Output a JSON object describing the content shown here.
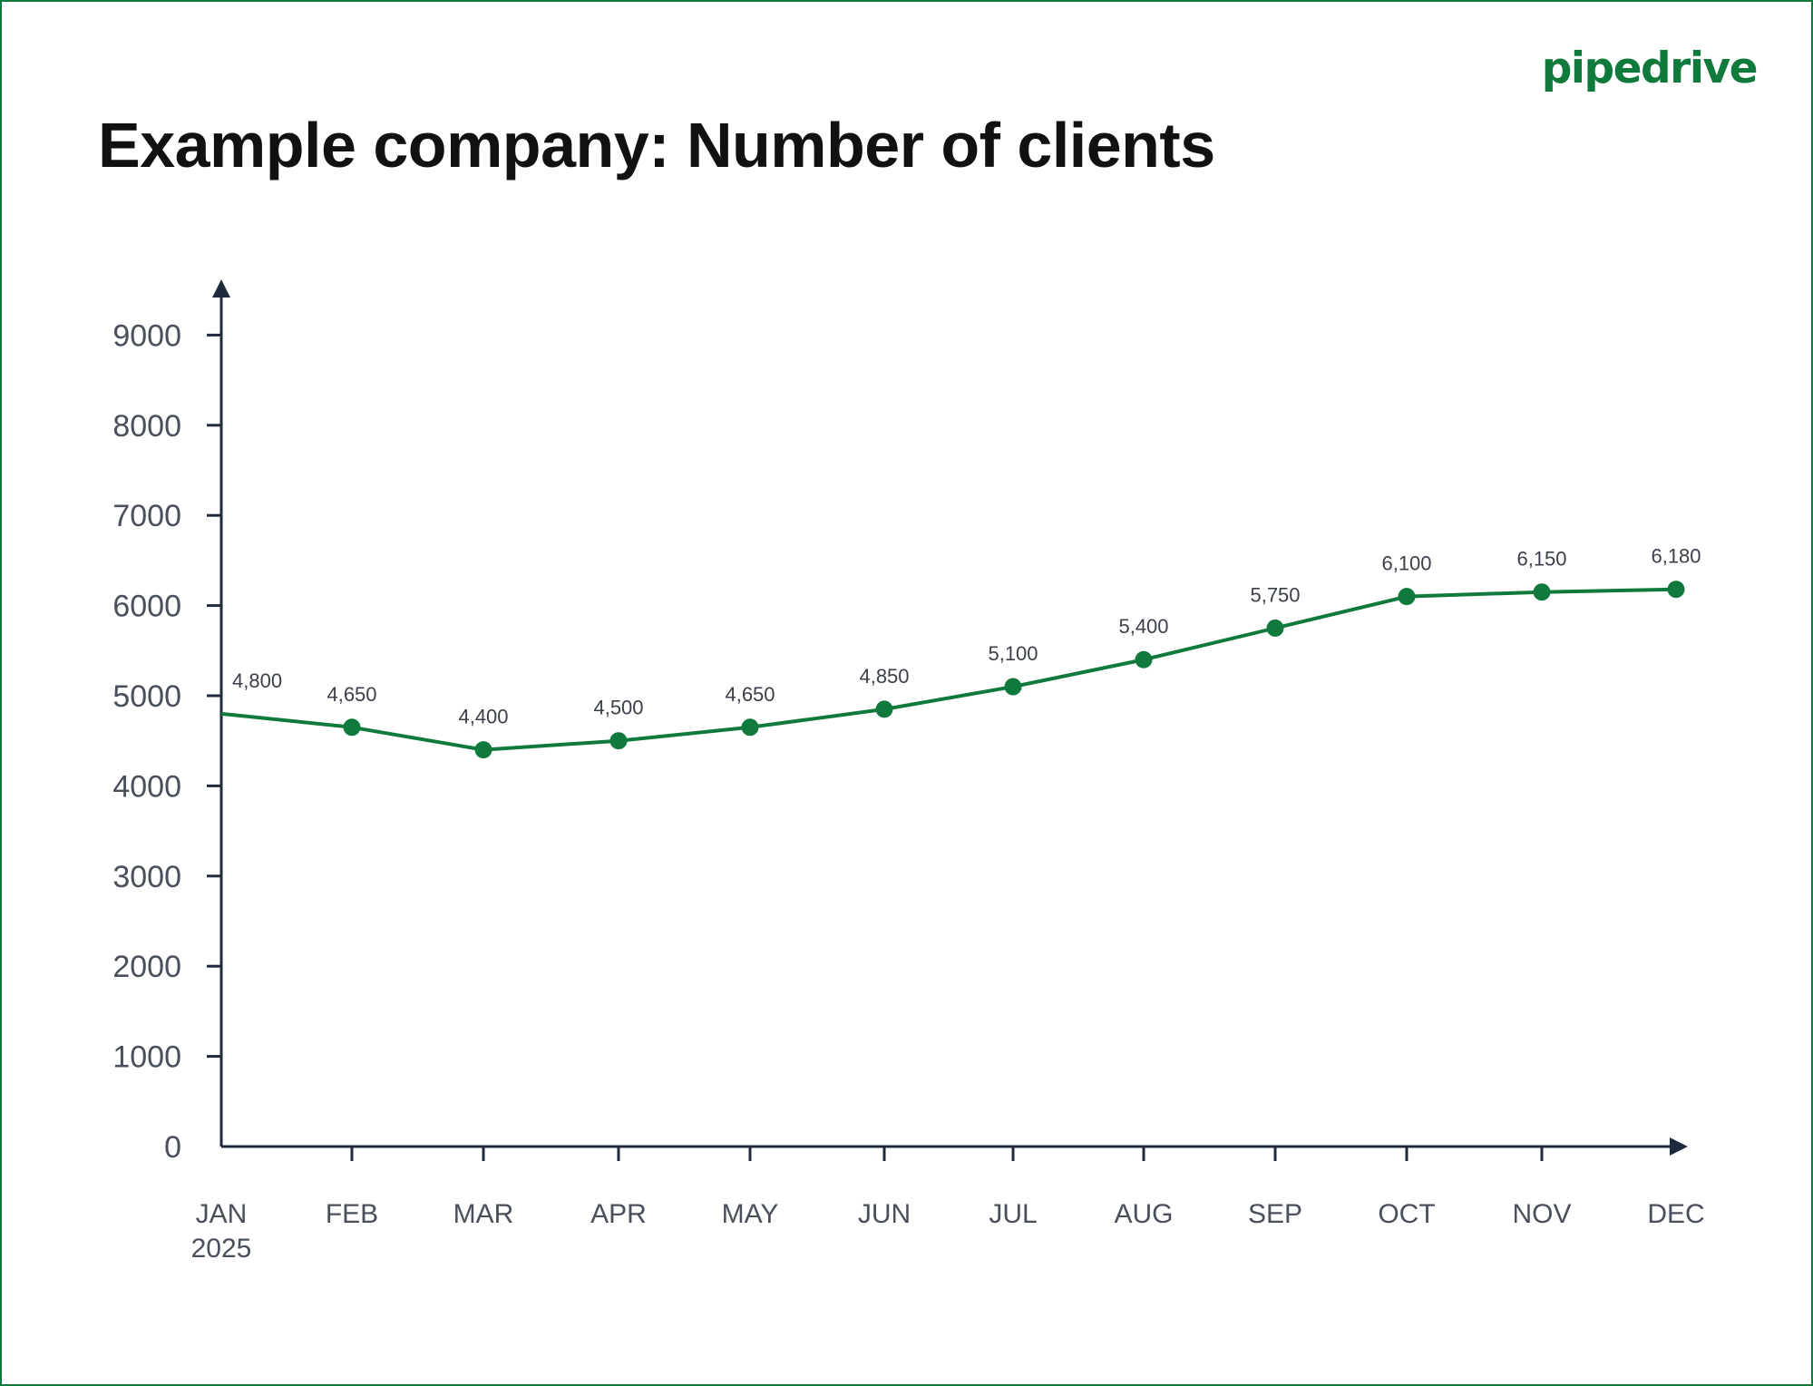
{
  "brand": {
    "logo_text": "pipedrive",
    "color": "#0f7a3c"
  },
  "chart_data": {
    "type": "line",
    "title": "Example company: Number of clients",
    "xlabel": "",
    "ylabel": "",
    "categories": [
      "JAN",
      "FEB",
      "MAR",
      "APR",
      "MAY",
      "JUN",
      "JUL",
      "AUG",
      "SEP",
      "OCT",
      "NOV",
      "DEC"
    ],
    "category_sublabels": [
      "2025",
      "",
      "",
      "",
      "",
      "",
      "",
      "",
      "",
      "",
      "",
      ""
    ],
    "series": [
      {
        "values": [
          4800,
          4650,
          4400,
          4500,
          4650,
          4850,
          5100,
          5400,
          5750,
          6100,
          6150,
          6180
        ],
        "data_labels": [
          "4,800",
          "4,650",
          "4,400",
          "4,500",
          "4,650",
          "4,850",
          "5,100",
          "5,400",
          "5,750",
          "6,100",
          "6,150",
          "6,180"
        ],
        "color": "#0f7a3c",
        "markers": true,
        "first_point_marker": false
      }
    ],
    "y_ticks": [
      0,
      1000,
      2000,
      3000,
      4000,
      5000,
      6000,
      7000,
      8000,
      9000
    ],
    "ylim": [
      0,
      9000
    ],
    "grid": false,
    "legend": "none",
    "axis_color": "#1f2a3c"
  }
}
